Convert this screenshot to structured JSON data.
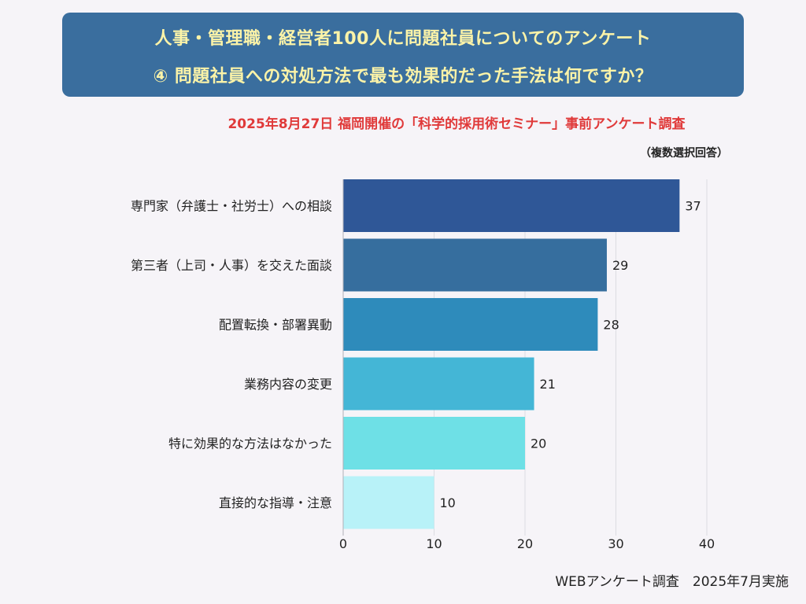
{
  "header": {
    "title_line1": "人事・管理職・経営者100人に問題社員についてのアンケート",
    "title_line2": "④ 問題社員への対処方法で最も効果的だった手法は何ですか？",
    "subtitle": "2025年8月27日 福岡開催の「科学的採用術セミナー」事前アンケート調査",
    "note": "（複数選択回答）"
  },
  "footer": {
    "text": "WEBアンケート調査　2025年7月実施"
  },
  "chart_data": {
    "type": "bar",
    "orientation": "horizontal",
    "categories": [
      "専門家（弁護士・社労士）への相談",
      "第三者（上司・人事）を交えた面談",
      "配置転換・部署異動",
      "業務内容の変更",
      "特に効果的な方法はなかった",
      "直接的な指導・注意"
    ],
    "values": [
      37,
      29,
      28,
      21,
      20,
      10
    ],
    "colors": [
      "#2f5797",
      "#366e9e",
      "#2e8bbb",
      "#44b6d6",
      "#6ee0e6",
      "#b8f2f8"
    ],
    "xlim": [
      0,
      40
    ],
    "xticks": [
      0,
      10,
      20,
      30,
      40
    ],
    "grid": true,
    "data_labels": true
  }
}
